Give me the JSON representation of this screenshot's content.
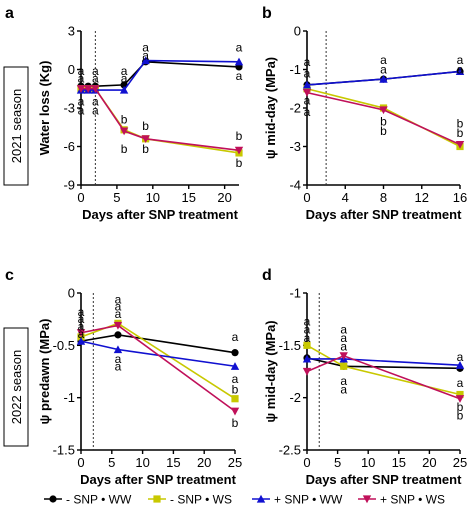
{
  "figure": {
    "season_labels": [
      "2021 season",
      "2022 season"
    ],
    "legend": [
      {
        "label": "- SNP • WW",
        "color": "#000000",
        "marker": "circle"
      },
      {
        "label": "- SNP • WS",
        "color": "#c8c800",
        "marker": "square"
      },
      {
        "label": "+ SNP • WW",
        "color": "#1010d0",
        "marker": "triangle-up"
      },
      {
        "label": "+ SNP • WS",
        "color": "#c0105a",
        "marker": "triangle-down"
      }
    ]
  },
  "chart_data": [
    {
      "panel": "a",
      "type": "line",
      "xlabel": "Days after SNP treatment",
      "ylabel": "Water loss (Kg)",
      "xlim": [
        0,
        22
      ],
      "ylim": [
        -9,
        3
      ],
      "xticks": [
        0,
        5,
        10,
        15,
        20
      ],
      "yticks": [
        -9,
        -6,
        -3,
        0,
        3
      ],
      "treatment_day": 2,
      "series": [
        {
          "name": "- SNP • WW",
          "x": [
            0,
            1,
            2,
            6,
            9,
            22
          ],
          "y": [
            -1.3,
            -1.3,
            -1.3,
            -1.2,
            0.6,
            0.2
          ]
        },
        {
          "name": "- SNP • WS",
          "x": [
            0,
            1,
            2,
            6,
            9,
            22
          ],
          "y": [
            -1.5,
            -1.5,
            -1.5,
            -4.7,
            -5.4,
            -6.5
          ]
        },
        {
          "name": "+ SNP • WW",
          "x": [
            0,
            1,
            2,
            6,
            9,
            22
          ],
          "y": [
            -1.6,
            -1.6,
            -1.6,
            -1.6,
            0.7,
            0.6
          ]
        },
        {
          "name": "+ SNP • WS",
          "x": [
            0,
            1,
            2,
            6,
            9,
            22
          ],
          "y": [
            -1.5,
            -1.5,
            -1.5,
            -4.8,
            -5.4,
            -6.3
          ]
        }
      ],
      "annotations": [
        {
          "text": "a",
          "x": 0,
          "y": -0.1
        },
        {
          "text": "a",
          "x": 0,
          "y": -0.7
        },
        {
          "text": "a",
          "x": 0,
          "y": -2.5
        },
        {
          "text": "a",
          "x": 0,
          "y": -3.2
        },
        {
          "text": "a",
          "x": 2,
          "y": -0.1
        },
        {
          "text": "a",
          "x": 2,
          "y": -0.7
        },
        {
          "text": "a",
          "x": 2,
          "y": -2.5
        },
        {
          "text": "a",
          "x": 2,
          "y": -3.2
        },
        {
          "text": "a",
          "x": 6,
          "y": -0.1
        },
        {
          "text": "a",
          "x": 6,
          "y": -0.7
        },
        {
          "text": "b",
          "x": 6,
          "y": -3.9
        },
        {
          "text": "b",
          "x": 6,
          "y": -6.2
        },
        {
          "text": "a",
          "x": 9,
          "y": 1.7
        },
        {
          "text": "a",
          "x": 9,
          "y": 1.1
        },
        {
          "text": "b",
          "x": 9,
          "y": -4.4
        },
        {
          "text": "b",
          "x": 9,
          "y": -6.2
        },
        {
          "text": "a",
          "x": 22,
          "y": 1.7
        },
        {
          "text": "a",
          "x": 22,
          "y": -0.5
        },
        {
          "text": "b",
          "x": 22,
          "y": -5.2
        },
        {
          "text": "b",
          "x": 22,
          "y": -7.3
        }
      ]
    },
    {
      "panel": "b",
      "type": "line",
      "xlabel": "Days after SNP treatment",
      "ylabel": "ψ mid-day (MPa)",
      "xlim": [
        0,
        16
      ],
      "ylim": [
        -4,
        0
      ],
      "xticks": [
        0,
        4,
        8,
        12,
        16
      ],
      "yticks": [
        -4,
        -3,
        -2,
        -1,
        0
      ],
      "treatment_day": 2,
      "series": [
        {
          "name": "- SNP • WW",
          "x": [
            0,
            8,
            16
          ],
          "y": [
            -1.4,
            -1.25,
            -1.05
          ]
        },
        {
          "name": "- SNP • WS",
          "x": [
            0,
            8,
            16
          ],
          "y": [
            -1.5,
            -2.0,
            -3.0
          ]
        },
        {
          "name": "+ SNP • WW",
          "x": [
            0,
            8,
            16
          ],
          "y": [
            -1.4,
            -1.25,
            -1.05
          ]
        },
        {
          "name": "+ SNP • WS",
          "x": [
            0,
            8,
            16
          ],
          "y": [
            -1.6,
            -2.05,
            -2.95
          ]
        }
      ],
      "annotations": [
        {
          "text": "a",
          "x": 0,
          "y": -0.8
        },
        {
          "text": "a",
          "x": 0,
          "y": -1.1
        },
        {
          "text": "a",
          "x": 0,
          "y": -1.8
        },
        {
          "text": "a",
          "x": 0,
          "y": -2.1
        },
        {
          "text": "a",
          "x": 8,
          "y": -0.75
        },
        {
          "text": "a",
          "x": 8,
          "y": -1.0
        },
        {
          "text": "b",
          "x": 8,
          "y": -2.35
        },
        {
          "text": "b",
          "x": 8,
          "y": -2.6
        },
        {
          "text": "a",
          "x": 16,
          "y": -0.75
        },
        {
          "text": "a",
          "x": 16,
          "y": -1.0
        },
        {
          "text": "b",
          "x": 16,
          "y": -2.4
        },
        {
          "text": "b",
          "x": 16,
          "y": -2.65
        }
      ]
    },
    {
      "panel": "c",
      "type": "line",
      "xlabel": "Days after SNP treatment",
      "ylabel": "ψ predawn (MPa)",
      "xlim": [
        0,
        25
      ],
      "ylim": [
        -1.5,
        0.0
      ],
      "xticks": [
        0,
        5,
        10,
        15,
        20,
        25
      ],
      "yticks": [
        -1.5,
        -1.0,
        -0.5,
        0.0
      ],
      "treatment_day": 2,
      "series": [
        {
          "name": "- SNP • WW",
          "x": [
            0,
            6,
            25
          ],
          "y": [
            -0.46,
            -0.4,
            -0.57
          ]
        },
        {
          "name": "- SNP • WS",
          "x": [
            0,
            6,
            25
          ],
          "y": [
            -0.42,
            -0.29,
            -1.01
          ]
        },
        {
          "name": "+ SNP • WW",
          "x": [
            0,
            6,
            25
          ],
          "y": [
            -0.46,
            -0.54,
            -0.7
          ]
        },
        {
          "name": "+ SNP • WS",
          "x": [
            0,
            6,
            25
          ],
          "y": [
            -0.38,
            -0.31,
            -1.13
          ]
        }
      ],
      "annotations": [
        {
          "text": "a",
          "x": 0,
          "y": -0.18
        },
        {
          "text": "a",
          "x": 0,
          "y": -0.25
        },
        {
          "text": "a",
          "x": 0,
          "y": -0.32
        },
        {
          "text": "a",
          "x": 0,
          "y": -0.39
        },
        {
          "text": "a",
          "x": 6,
          "y": -0.06
        },
        {
          "text": "a",
          "x": 6,
          "y": -0.13
        },
        {
          "text": "a",
          "x": 6,
          "y": -0.2
        },
        {
          "text": "a",
          "x": 6,
          "y": -0.63
        },
        {
          "text": "a",
          "x": 6,
          "y": -0.7
        },
        {
          "text": "a",
          "x": 25,
          "y": -0.42
        },
        {
          "text": "a",
          "x": 25,
          "y": -0.82
        },
        {
          "text": "b",
          "x": 25,
          "y": -0.92
        },
        {
          "text": "b",
          "x": 25,
          "y": -1.24
        }
      ]
    },
    {
      "panel": "d",
      "type": "line",
      "xlabel": "Days after SNP treatment",
      "ylabel": "ψ mid-day (MPa)",
      "xlim": [
        0,
        25
      ],
      "ylim": [
        -2.5,
        -1.0
      ],
      "xticks": [
        0,
        5,
        10,
        15,
        20,
        25
      ],
      "yticks": [
        -2.5,
        -2.0,
        -1.5,
        -1.0
      ],
      "treatment_day": 2,
      "series": [
        {
          "name": "- SNP • WW",
          "x": [
            0,
            6,
            25
          ],
          "y": [
            -1.62,
            -1.7,
            -1.72
          ]
        },
        {
          "name": "- SNP • WS",
          "x": [
            0,
            6,
            25
          ],
          "y": [
            -1.5,
            -1.7,
            -1.97
          ]
        },
        {
          "name": "+ SNP • WW",
          "x": [
            0,
            6,
            25
          ],
          "y": [
            -1.63,
            -1.63,
            -1.69
          ]
        },
        {
          "name": "+ SNP • WS",
          "x": [
            0,
            6,
            25
          ],
          "y": [
            -1.75,
            -1.6,
            -2.01
          ]
        }
      ],
      "annotations": [
        {
          "text": "a",
          "x": 0,
          "y": -1.27
        },
        {
          "text": "a",
          "x": 0,
          "y": -1.35
        },
        {
          "text": "a",
          "x": 0,
          "y": -1.43
        },
        {
          "text": "a",
          "x": 6,
          "y": -1.35
        },
        {
          "text": "a",
          "x": 6,
          "y": -1.43
        },
        {
          "text": "a",
          "x": 6,
          "y": -1.51
        },
        {
          "text": "a",
          "x": 6,
          "y": -1.84
        },
        {
          "text": "a",
          "x": 6,
          "y": -1.92
        },
        {
          "text": "a",
          "x": 25,
          "y": -1.61
        },
        {
          "text": "a",
          "x": 25,
          "y": -1.86
        },
        {
          "text": "b",
          "x": 25,
          "y": -2.09
        },
        {
          "text": "b",
          "x": 25,
          "y": -2.17
        }
      ]
    }
  ]
}
